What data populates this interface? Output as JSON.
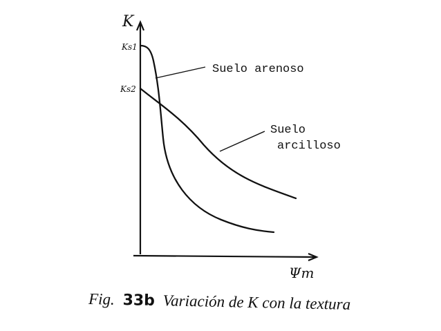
{
  "chart_data": {
    "type": "line",
    "title": "",
    "xlabel": "Ψm",
    "ylabel": "K",
    "ytick_labels": [
      "Ks1",
      "Ks2"
    ],
    "grid": false,
    "legend": "none",
    "series": [
      {
        "name": "Suelo arenoso",
        "label_lines": [
          "Suelo arenoso"
        ]
      },
      {
        "name": "Suelo arcilloso",
        "label_lines": [
          "Suelo",
          "arcilloso"
        ]
      }
    ]
  },
  "caption": {
    "prefix": "Fig.",
    "number": "33b",
    "text": "Variación de K con la textura"
  }
}
